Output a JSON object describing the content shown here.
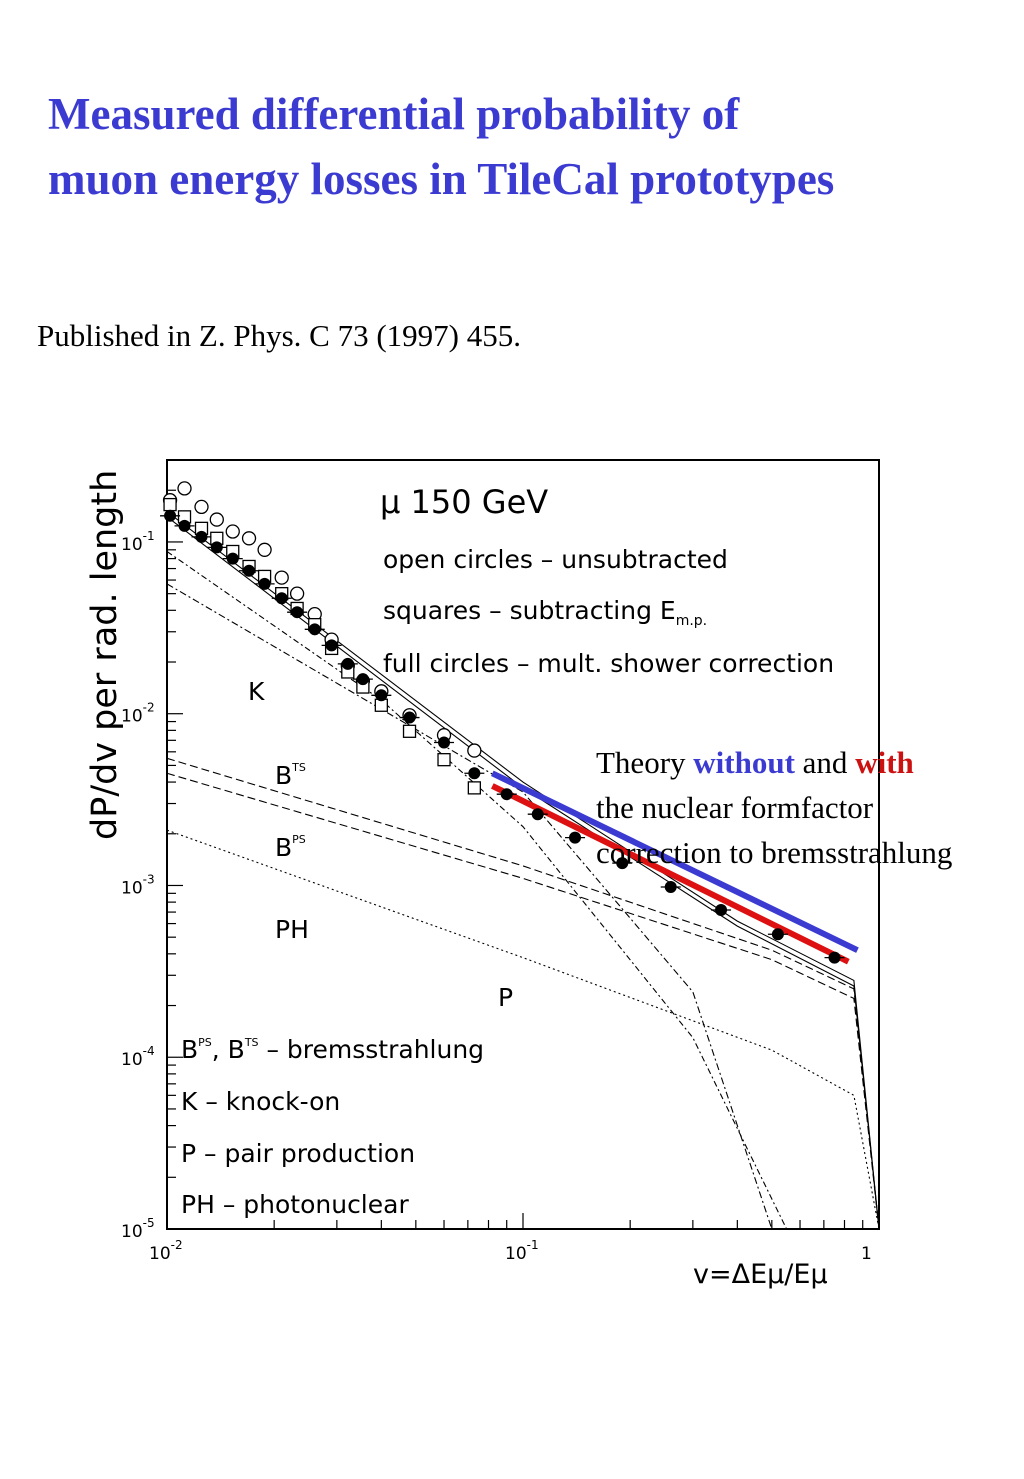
{
  "slide": {
    "title_line1": "Measured differential probability of",
    "title_line2": "muon energy losses in TileCal prototypes",
    "citation": "Published in Z. Phys. C 73 (1997) 455.",
    "note": {
      "line1_a": "Theory ",
      "line1_without": "without",
      "line1_b": " and ",
      "line1_with": "with",
      "line2": "the nuclear formfactor",
      "line3": "correction to bremsstrahlung"
    }
  },
  "colors": {
    "title": "#3b3bd2",
    "without_line": "#3b3bd2",
    "with_line": "#dd1111",
    "text": "#000000"
  },
  "chart_data": {
    "type": "scatter",
    "ylabel": "dP/dv per rad. length",
    "xlabel": "v=ΔEμ/Eμ",
    "x_scale": "log",
    "y_scale": "log",
    "xlim": [
      0.01,
      1
    ],
    "ylim": [
      1e-05,
      0.3
    ],
    "x_ticks": [
      {
        "v": 0.01,
        "base": "10",
        "exp": "-2"
      },
      {
        "v": 0.1,
        "base": "10",
        "exp": "-1"
      },
      {
        "v": 1,
        "base": "1",
        "exp": ""
      }
    ],
    "y_ticks": [
      {
        "v": 0.1,
        "base": "10",
        "exp": "-1"
      },
      {
        "v": 0.01,
        "base": "10",
        "exp": "-2"
      },
      {
        "v": 0.001,
        "base": "10",
        "exp": "-3"
      },
      {
        "v": 0.0001,
        "base": "10",
        "exp": "-4"
      },
      {
        "v": 1e-05,
        "base": "10",
        "exp": "-5"
      }
    ],
    "header": {
      "energy": "μ 150 GeV",
      "line_open": "open circles – unsubtracted",
      "line_squares": "squares – subtracting E",
      "line_squares_sub": "m.p.",
      "line_full": "full circles – mult. shower correction"
    },
    "legend_bottom": {
      "brems_a": "B",
      "brems_a_sup": "PS",
      "brems_b": ", B",
      "brems_b_sup": "TS",
      "brems_c": " – bremsstrahlung",
      "knock": "K – knock-on",
      "pair": "P – pair production",
      "photo": "PH – photonuclear"
    },
    "curve_labels": {
      "K": "K",
      "BTS": "B",
      "BTS_sup": "TS",
      "BPS": "B",
      "BPS_sup": "PS",
      "PH": "PH",
      "P": "P"
    },
    "series": [
      {
        "name": "open circles – unsubtracted",
        "marker": "open-circle",
        "points": [
          [
            0.0102,
            0.175
          ],
          [
            0.0112,
            0.205
          ],
          [
            0.0125,
            0.16
          ],
          [
            0.0138,
            0.135
          ],
          [
            0.0153,
            0.115
          ],
          [
            0.017,
            0.105
          ],
          [
            0.0188,
            0.09
          ],
          [
            0.021,
            0.062
          ],
          [
            0.0232,
            0.05
          ],
          [
            0.026,
            0.038
          ],
          [
            0.029,
            0.027
          ],
          [
            0.0322,
            0.019
          ],
          [
            0.0355,
            0.0155
          ],
          [
            0.04,
            0.0135
          ],
          [
            0.048,
            0.0098
          ],
          [
            0.06,
            0.0075
          ],
          [
            0.073,
            0.0061
          ]
        ]
      },
      {
        "name": "squares – subtracting E m.p.",
        "marker": "open-square",
        "points": [
          [
            0.0102,
            0.165
          ],
          [
            0.0112,
            0.14
          ],
          [
            0.0125,
            0.12
          ],
          [
            0.0138,
            0.105
          ],
          [
            0.0153,
            0.088
          ],
          [
            0.017,
            0.072
          ],
          [
            0.0188,
            0.063
          ],
          [
            0.021,
            0.05
          ],
          [
            0.0232,
            0.041
          ],
          [
            0.026,
            0.033
          ],
          [
            0.029,
            0.024
          ],
          [
            0.0322,
            0.0175
          ],
          [
            0.0355,
            0.0143
          ],
          [
            0.04,
            0.0112
          ],
          [
            0.048,
            0.0079
          ],
          [
            0.06,
            0.0054
          ],
          [
            0.073,
            0.0037
          ]
        ]
      },
      {
        "name": "full circles – mult. shower correction",
        "marker": "full-circle",
        "points": [
          [
            0.0102,
            0.142
          ],
          [
            0.0112,
            0.124
          ],
          [
            0.0125,
            0.107
          ],
          [
            0.0138,
            0.093
          ],
          [
            0.0153,
            0.08
          ],
          [
            0.017,
            0.068
          ],
          [
            0.0188,
            0.057
          ],
          [
            0.021,
            0.047
          ],
          [
            0.0232,
            0.039
          ],
          [
            0.026,
            0.031
          ],
          [
            0.029,
            0.025
          ],
          [
            0.0322,
            0.0195
          ],
          [
            0.0355,
            0.0159
          ],
          [
            0.04,
            0.0128
          ],
          [
            0.048,
            0.0095
          ],
          [
            0.06,
            0.0068
          ],
          [
            0.073,
            0.0045
          ],
          [
            0.09,
            0.0034
          ],
          [
            0.11,
            0.0026
          ],
          [
            0.14,
            0.0019
          ],
          [
            0.19,
            0.00135
          ],
          [
            0.26,
            0.00098
          ],
          [
            0.36,
            0.00072
          ],
          [
            0.52,
            0.00052
          ],
          [
            0.75,
            0.00038
          ]
        ]
      }
    ],
    "theory": [
      {
        "name": "without",
        "color": "#3b3bd2",
        "points": [
          [
            0.082,
            0.0045
          ],
          [
            0.87,
            0.00042
          ]
        ]
      },
      {
        "name": "with",
        "color": "#dd1111",
        "points": [
          [
            0.082,
            0.0038
          ],
          [
            0.82,
            0.00036
          ]
        ]
      }
    ],
    "component_curves": [
      {
        "name": "K",
        "points": [
          [
            0.01,
            0.088
          ],
          [
            0.04,
            0.012
          ],
          [
            0.1,
            0.0022
          ],
          [
            0.3,
            0.00013
          ],
          [
            0.55,
            1e-05
          ]
        ]
      },
      {
        "name": "BTS",
        "points": [
          [
            0.01,
            0.0055
          ],
          [
            0.1,
            0.0013
          ],
          [
            0.5,
            0.00042
          ],
          [
            0.85,
            0.00025
          ],
          [
            1.0,
            1e-05
          ]
        ]
      },
      {
        "name": "BPS",
        "points": [
          [
            0.01,
            0.0045
          ],
          [
            0.1,
            0.0011
          ],
          [
            0.5,
            0.00037
          ],
          [
            0.85,
            0.00022
          ],
          [
            1.0,
            1e-05
          ]
        ]
      },
      {
        "name": "PH",
        "points": [
          [
            0.01,
            0.0021
          ],
          [
            0.1,
            0.00038
          ],
          [
            0.5,
            0.00011
          ],
          [
            0.85,
            6e-05
          ],
          [
            1.0,
            1e-05
          ]
        ]
      },
      {
        "name": "P",
        "points": [
          [
            0.01,
            0.057
          ],
          [
            0.1,
            0.0035
          ],
          [
            0.3,
            0.00024
          ],
          [
            0.5,
            1e-05
          ]
        ]
      },
      {
        "name": "total",
        "points": [
          [
            0.01,
            0.15
          ],
          [
            0.1,
            0.004
          ],
          [
            0.4,
            0.00062
          ],
          [
            0.85,
            0.00028
          ],
          [
            1.0,
            1e-05
          ]
        ]
      },
      {
        "name": "total-2",
        "points": [
          [
            0.01,
            0.14
          ],
          [
            0.1,
            0.0037
          ],
          [
            0.4,
            0.00058
          ],
          [
            0.85,
            0.00026
          ],
          [
            1.0,
            1e-05
          ]
        ]
      }
    ]
  }
}
